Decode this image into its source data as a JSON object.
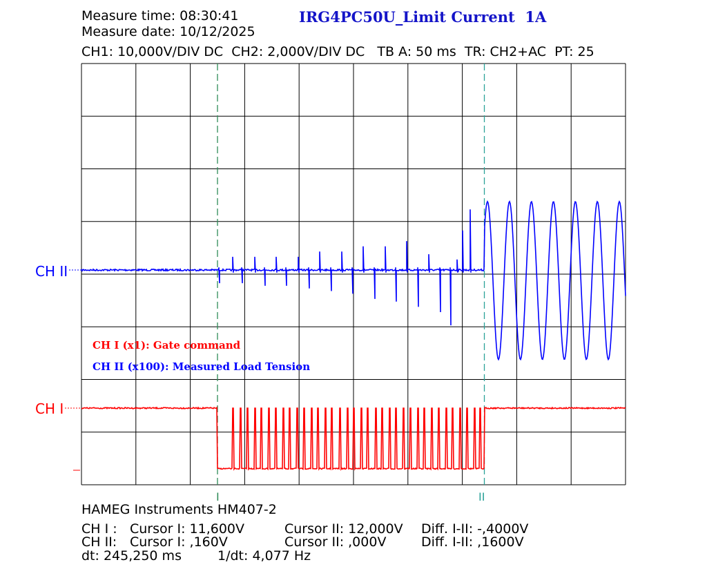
{
  "header": {
    "measure_time": "Measure time: 08:30:41",
    "measure_date": "Measure date: 10/12/2025",
    "title": "IRG4PC50U_Limit Current  1A",
    "settings": "CH1: 10,000V/DIV DC  CH2: 2,000V/DIV DC   TB A: 50 ms  TR: CH2+AC  PT: 25"
  },
  "colors": {
    "ch1": "#ff0000",
    "ch2": "#0000ff",
    "title": "#1414c8",
    "cursor1": "#2e8b57",
    "cursor2": "#2aa198",
    "grid": "#000000"
  },
  "channel_labels": {
    "ch2": "CH II",
    "ch1": "CH I"
  },
  "legend": {
    "ch1": "CH I (x1): Gate command",
    "ch2": "CH II (x100): Measured Load Tension"
  },
  "cursor_markers": {
    "c1": "I",
    "c2": "II"
  },
  "footer": {
    "instrument": "HAMEG Instruments HM407-2",
    "row1": {
      "label": "CH I :",
      "c1": "Cursor I: 11,600V",
      "c2": "Cursor II: 12,000V",
      "diff": "Diff. I-II: -,4000V"
    },
    "row2": {
      "label": "CH II:",
      "c1": "Cursor I: ,160V",
      "c2": "Cursor II: ,000V",
      "diff": "Diff. I-II: ,1600V"
    },
    "dt": "dt: 245,250 ms",
    "inv_dt": "1/dt: 4,077 Hz"
  },
  "chart_data": {
    "type": "line",
    "divisions": {
      "x": 10,
      "y": 8
    },
    "x_unit": "ms",
    "time_per_div_ms": 50,
    "x_range_ms": [
      0,
      500
    ],
    "cursors_ms": {
      "cursor1": 125,
      "cursor2": 370.25
    },
    "series": [
      {
        "name": "CH I (x1): Gate command",
        "volts_per_div": 10,
        "high_level_div": 0.0,
        "low_level_div": -1.15,
        "pwm_window_ms": [
          125,
          370
        ],
        "pulse_times_ms": [
          139,
          146,
          152,
          159,
          165,
          172,
          178,
          185,
          191,
          198,
          204,
          211,
          217,
          224,
          230,
          237,
          244,
          250,
          257,
          263,
          270,
          276,
          283,
          289,
          296,
          302,
          309,
          315,
          322,
          328,
          335,
          341,
          348,
          354,
          361,
          366
        ]
      },
      {
        "name": "CH II (x100): Measured Load Tension",
        "volts_per_div": 2,
        "baseline_div": 0.0,
        "spikes": [
          {
            "t_ms": 126,
            "up": 0.05,
            "down": 0.25
          },
          {
            "t_ms": 139,
            "up": 0.25,
            "down": 0.05
          },
          {
            "t_ms": 147,
            "up": 0.05,
            "down": 0.25
          },
          {
            "t_ms": 159,
            "up": 0.25,
            "down": 0.05
          },
          {
            "t_ms": 168,
            "up": 0.05,
            "down": 0.3
          },
          {
            "t_ms": 179,
            "up": 0.25,
            "down": 0.05
          },
          {
            "t_ms": 188,
            "up": 0.05,
            "down": 0.3
          },
          {
            "t_ms": 199,
            "up": 0.25,
            "down": 0.05
          },
          {
            "t_ms": 209,
            "up": 0.05,
            "down": 0.35
          },
          {
            "t_ms": 219,
            "up": 0.35,
            "down": 0.05
          },
          {
            "t_ms": 229,
            "up": 0.05,
            "down": 0.4
          },
          {
            "t_ms": 239,
            "up": 0.35,
            "down": 0.05
          },
          {
            "t_ms": 249,
            "up": 0.05,
            "down": 0.45
          },
          {
            "t_ms": 259,
            "up": 0.45,
            "down": 0.05
          },
          {
            "t_ms": 269,
            "up": 0.05,
            "down": 0.55
          },
          {
            "t_ms": 279,
            "up": 0.45,
            "down": 0.05
          },
          {
            "t_ms": 289,
            "up": 0.05,
            "down": 0.6
          },
          {
            "t_ms": 299,
            "up": 0.55,
            "down": 0.05
          },
          {
            "t_ms": 309,
            "up": 0.05,
            "down": 0.7
          },
          {
            "t_ms": 319,
            "up": 0.3,
            "down": 0.05
          },
          {
            "t_ms": 329,
            "up": 0.05,
            "down": 0.8
          },
          {
            "t_ms": 339,
            "up": 0.05,
            "down": 1.05
          },
          {
            "t_ms": 345,
            "up": 0.2,
            "down": 0.05
          },
          {
            "t_ms": 350,
            "up": 0.75,
            "down": 0.05
          },
          {
            "t_ms": 357,
            "up": 1.15,
            "down": 0.05
          }
        ],
        "ringing": {
          "start_ms": 370,
          "end_ms": 500,
          "amplitude_div": 1.5,
          "offset_div": -0.2,
          "period_ms": 20.2,
          "phase": 0.6
        }
      }
    ]
  }
}
